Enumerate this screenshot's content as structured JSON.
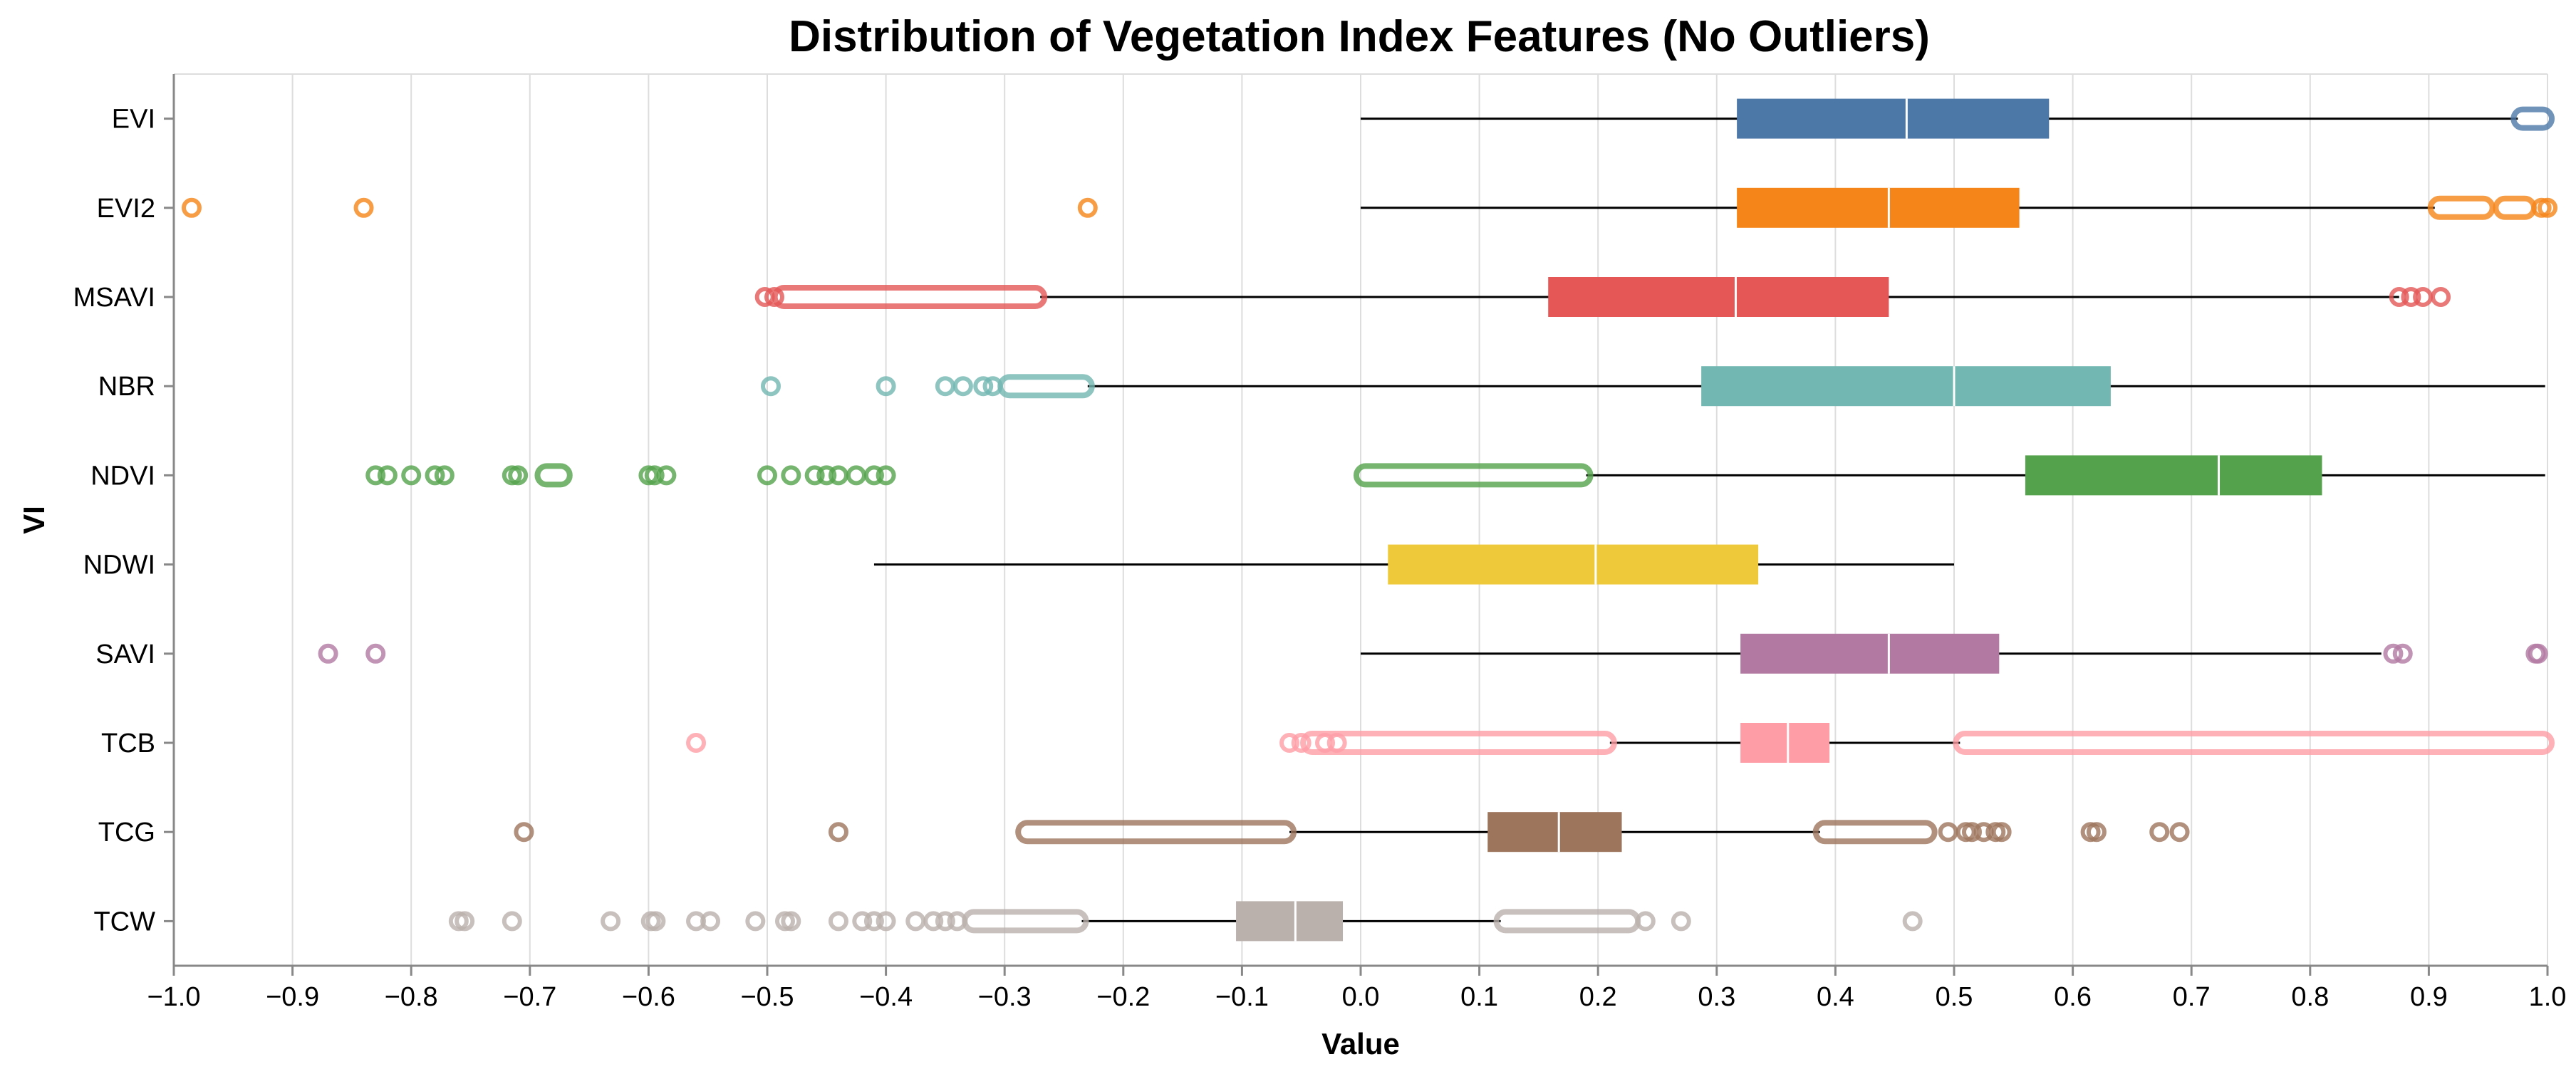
{
  "chart_data": {
    "type": "boxplot",
    "title": "Distribution of Vegetation Index Features (No Outliers)",
    "xlabel": "Value",
    "ylabel": "VI",
    "xlim": [
      -1.0,
      1.0
    ],
    "xticks": [
      "−1.0",
      "−0.9",
      "−0.8",
      "−0.7",
      "−0.6",
      "−0.5",
      "−0.4",
      "−0.3",
      "−0.2",
      "−0.1",
      "0.0",
      "0.1",
      "0.2",
      "0.3",
      "0.4",
      "0.5",
      "0.6",
      "0.7",
      "0.8",
      "0.9",
      "1.0"
    ],
    "grid": true,
    "categories": [
      "EVI",
      "EVI2",
      "MSAVI",
      "NBR",
      "NDVI",
      "NDWI",
      "SAVI",
      "TCB",
      "TCG",
      "TCW"
    ],
    "series": [
      {
        "category": "EVI",
        "color": "#4c78a8",
        "whisker_low": 0.0,
        "q1": 0.317,
        "median": 0.46,
        "q3": 0.58,
        "whisker_high": 0.975,
        "outlier_ranges": [
          [
            0.975,
            1.0
          ]
        ],
        "outliers": []
      },
      {
        "category": "EVI2",
        "color": "#f58518",
        "whisker_low": 0.0,
        "q1": 0.317,
        "median": 0.445,
        "q3": 0.555,
        "whisker_high": 0.905,
        "outlier_ranges": [
          [
            0.905,
            0.95
          ],
          [
            0.96,
            0.985
          ]
        ],
        "outliers": [
          -0.985,
          -0.84,
          -0.23,
          0.995,
          1.0
        ]
      },
      {
        "category": "MSAVI",
        "color": "#e45756",
        "whisker_low": -0.27,
        "q1": 0.158,
        "median": 0.316,
        "q3": 0.445,
        "whisker_high": 0.875,
        "outlier_ranges": [
          [
            -0.49,
            -0.27
          ]
        ],
        "outliers": [
          -0.502,
          -0.494,
          0.875,
          0.885,
          0.895,
          0.91
        ]
      },
      {
        "category": "NBR",
        "color": "#72b7b2",
        "whisker_low": -0.23,
        "q1": 0.287,
        "median": 0.5,
        "q3": 0.632,
        "whisker_high": 0.998,
        "outlier_ranges": [
          [
            -0.3,
            -0.23
          ]
        ],
        "outliers": [
          -0.497,
          -0.4,
          -0.35,
          -0.335,
          -0.318,
          -0.31
        ]
      },
      {
        "category": "NDVI",
        "color": "#54a24b",
        "whisker_low": 0.19,
        "q1": 0.56,
        "median": 0.723,
        "q3": 0.81,
        "whisker_high": 0.998,
        "outlier_ranges": [
          [
            0.0,
            0.19
          ],
          [
            -0.69,
            -0.67
          ]
        ],
        "outliers": [
          -0.83,
          -0.82,
          -0.8,
          -0.78,
          -0.772,
          -0.715,
          -0.71,
          -0.6,
          -0.595,
          -0.585,
          -0.5,
          -0.48,
          -0.46,
          -0.45,
          -0.44,
          -0.425,
          -0.41,
          -0.4
        ]
      },
      {
        "category": "NDWI",
        "color": "#eeca3b",
        "whisker_low": -0.41,
        "q1": 0.023,
        "median": 0.198,
        "q3": 0.335,
        "whisker_high": 0.5,
        "outlier_ranges": [],
        "outliers": []
      },
      {
        "category": "SAVI",
        "color": "#b279a2",
        "whisker_low": 0.0,
        "q1": 0.32,
        "median": 0.445,
        "q3": 0.538,
        "whisker_high": 0.86,
        "outlier_ranges": [],
        "outliers": [
          -0.87,
          -0.83,
          0.87,
          0.878,
          0.99,
          0.992
        ]
      },
      {
        "category": "TCB",
        "color": "#ff9da6",
        "whisker_low": 0.21,
        "q1": 0.32,
        "median": 0.36,
        "q3": 0.395,
        "whisker_high": 0.505,
        "outlier_ranges": [
          [
            -0.045,
            0.21
          ],
          [
            0.505,
            1.0
          ]
        ],
        "outliers": [
          -0.56,
          -0.06,
          -0.05,
          -0.03,
          -0.02
        ]
      },
      {
        "category": "TCG",
        "color": "#9d755d",
        "whisker_low": -0.06,
        "q1": 0.107,
        "median": 0.167,
        "q3": 0.22,
        "whisker_high": 0.387,
        "outlier_ranges": [
          [
            -0.285,
            -0.06
          ],
          [
            0.387,
            0.48
          ]
        ],
        "outliers": [
          -0.705,
          -0.44,
          0.495,
          0.51,
          0.515,
          0.525,
          0.535,
          0.54,
          0.615,
          0.62,
          0.673,
          0.69
        ]
      },
      {
        "category": "TCW",
        "color": "#bab0ac",
        "whisker_low": -0.235,
        "q1": -0.105,
        "median": -0.055,
        "q3": -0.015,
        "whisker_high": 0.118,
        "outlier_ranges": [
          [
            -0.33,
            -0.235
          ],
          [
            0.118,
            0.23
          ]
        ],
        "outliers": [
          -0.76,
          -0.755,
          -0.715,
          -0.632,
          -0.598,
          -0.594,
          -0.56,
          -0.548,
          -0.51,
          -0.485,
          -0.48,
          -0.44,
          -0.42,
          -0.41,
          -0.4,
          -0.375,
          -0.36,
          -0.35,
          -0.34,
          0.24,
          0.27,
          0.465
        ]
      }
    ]
  }
}
